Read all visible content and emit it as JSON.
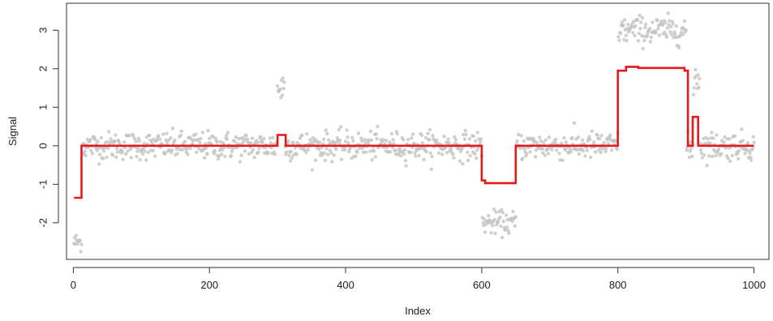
{
  "chart_data": {
    "type": "scatter",
    "xlabel": "Index",
    "ylabel": "Signal",
    "xlim": [
      -10,
      1022
    ],
    "ylim": [
      -2.95,
      3.7
    ],
    "x_ticks": [
      0,
      200,
      400,
      600,
      800,
      1000
    ],
    "y_ticks": [
      -2,
      -1,
      0,
      1,
      2,
      3
    ],
    "grid": false,
    "colors": {
      "points": "#c4c4c4",
      "fit": "#e41a1c",
      "axis": "#333333"
    },
    "point_segments": [
      {
        "start": 1,
        "end": 12,
        "mean": -2.5,
        "sd": 0.12
      },
      {
        "start": 13,
        "end": 299,
        "mean": 0.0,
        "sd": 0.18
      },
      {
        "start": 300,
        "end": 310,
        "mean": 1.5,
        "sd": 0.25
      },
      {
        "start": 311,
        "end": 600,
        "mean": 0.0,
        "sd": 0.18
      },
      {
        "start": 601,
        "end": 650,
        "mean": -2.0,
        "sd": 0.15
      },
      {
        "start": 651,
        "end": 800,
        "mean": 0.0,
        "sd": 0.18
      },
      {
        "start": 801,
        "end": 900,
        "mean": 3.0,
        "sd": 0.18
      },
      {
        "start": 901,
        "end": 910,
        "mean": -0.1,
        "sd": 0.2
      },
      {
        "start": 911,
        "end": 920,
        "mean": 1.8,
        "sd": 0.3
      },
      {
        "start": 921,
        "end": 1000,
        "mean": 0.0,
        "sd": 0.18
      }
    ],
    "series": [
      {
        "type": "step",
        "x": [
          1,
          12,
          12,
          300,
          300,
          312,
          312,
          600,
          600,
          605,
          605,
          650,
          650,
          800,
          800,
          812,
          812,
          830,
          830,
          898,
          898,
          903,
          903,
          910,
          910,
          918,
          918,
          1000
        ],
        "y": [
          -1.35,
          -1.35,
          0,
          0,
          0.28,
          0.28,
          0,
          0,
          -0.9,
          -0.9,
          -0.97,
          -0.97,
          0,
          0,
          1.95,
          1.95,
          2.05,
          2.05,
          2.02,
          2.02,
          1.95,
          1.95,
          0,
          0,
          0.75,
          0.75,
          0,
          0
        ]
      }
    ]
  }
}
